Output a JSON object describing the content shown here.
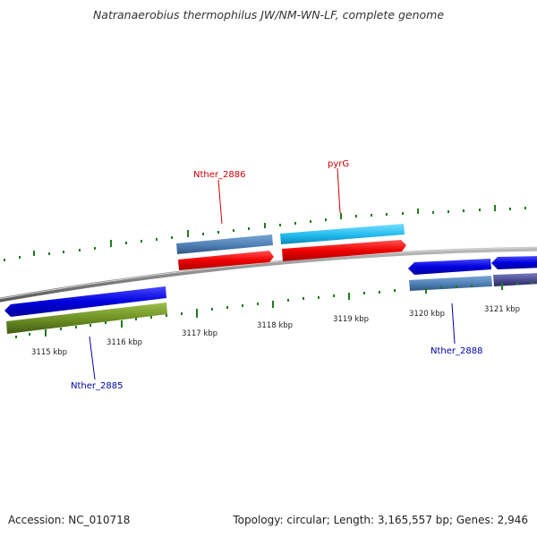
{
  "title": "Natranaerobius thermophilus JW/NM-WN-LF, complete genome",
  "footer": {
    "accession": "Accession: NC_010718",
    "topology": "Topology: circular; Length: 3,165,557 bp; Genes: 2,946"
  },
  "ruler": {
    "labels": [
      "3115 kbp",
      "3116 kbp",
      "3117 kbp",
      "3118 kbp",
      "3119 kbp",
      "3120 kbp",
      "3121 kbp"
    ]
  },
  "gene_labels": [
    {
      "text": "Nther_2886",
      "color": "#cc0000",
      "strand": "forward"
    },
    {
      "text": "pyrG",
      "color": "#cc0000",
      "strand": "forward"
    },
    {
      "text": "Nther_2885",
      "color": "#0000aa",
      "strand": "reverse"
    },
    {
      "text": "Nther_2888",
      "color": "#0000aa",
      "strand": "reverse"
    }
  ],
  "colors": {
    "backbone": "#8c8c8c",
    "ticks": "#1f7a1f",
    "cds_forward": "#ee0000",
    "cds_reverse": "#0000dd",
    "gene_steelblue": "#4f7fb4",
    "gene_skyblue": "#22bbee",
    "gene_olive": "#6b8e23",
    "gene_slate": "#4a4a90"
  }
}
